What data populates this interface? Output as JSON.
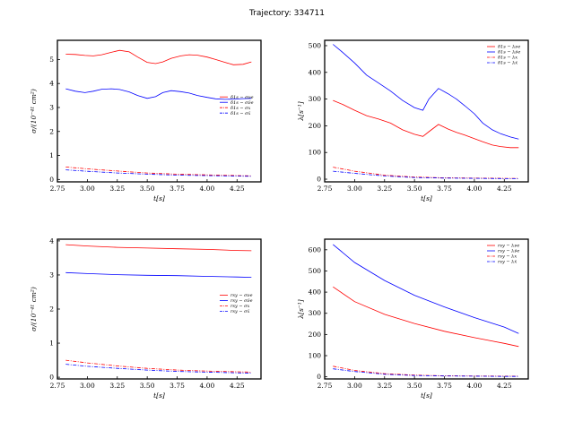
{
  "title": "Trajectory: 334711",
  "chart_data": [
    {
      "type": "line",
      "xlabel": "t[s]",
      "ylabel": "σ/(10⁻⁴¹ cm²)",
      "xlim": [
        2.75,
        4.45
      ],
      "ylim": [
        -0.1,
        5.8
      ],
      "xticks": [
        "2.75",
        "3.00",
        "3.25",
        "3.50",
        "3.75",
        "4.00",
        "4.25"
      ],
      "yticks": [
        "0",
        "1",
        "2",
        "3",
        "4",
        "5"
      ],
      "legend_position": "right",
      "grid": false,
      "series": [
        {
          "name": "δ1s − σνe",
          "color": "#ff0000",
          "style": "solid",
          "x": [
            2.82,
            2.9,
            2.98,
            3.05,
            3.12,
            3.2,
            3.27,
            3.35,
            3.42,
            3.5,
            3.57,
            3.63,
            3.7,
            3.78,
            3.85,
            3.92,
            4.0,
            4.07,
            4.15,
            4.22,
            4.3,
            4.37
          ],
          "y": [
            5.22,
            5.21,
            5.17,
            5.15,
            5.2,
            5.3,
            5.38,
            5.32,
            5.1,
            4.88,
            4.83,
            4.9,
            5.05,
            5.15,
            5.2,
            5.18,
            5.1,
            5.0,
            4.88,
            4.78,
            4.8,
            4.9
          ]
        },
        {
          "name": "δ1s − σν̄e",
          "color": "#0000ff",
          "style": "solid",
          "x": [
            2.82,
            2.9,
            2.98,
            3.05,
            3.12,
            3.2,
            3.27,
            3.35,
            3.42,
            3.5,
            3.57,
            3.63,
            3.7,
            3.78,
            3.85,
            3.92,
            4.0,
            4.07,
            4.15,
            4.22,
            4.3,
            4.37
          ],
          "y": [
            3.78,
            3.68,
            3.62,
            3.68,
            3.76,
            3.78,
            3.75,
            3.65,
            3.5,
            3.38,
            3.45,
            3.62,
            3.7,
            3.66,
            3.6,
            3.5,
            3.42,
            3.36,
            3.34,
            3.35,
            3.37,
            3.38
          ]
        },
        {
          "name": "δ1s − σx",
          "color": "#ff0000",
          "style": "dashdot",
          "x": [
            2.82,
            3.0,
            3.25,
            3.5,
            3.75,
            4.0,
            4.25,
            4.37
          ],
          "y": [
            0.52,
            0.44,
            0.35,
            0.27,
            0.22,
            0.19,
            0.16,
            0.15
          ]
        },
        {
          "name": "δ1s − σx̄",
          "color": "#0000ff",
          "style": "dashdot",
          "x": [
            2.82,
            3.0,
            3.25,
            3.5,
            3.75,
            4.0,
            4.25,
            4.37
          ],
          "y": [
            0.4,
            0.34,
            0.27,
            0.22,
            0.18,
            0.16,
            0.14,
            0.13
          ]
        }
      ]
    },
    {
      "type": "line",
      "xlabel": "t[s]",
      "ylabel": "λ[s⁻¹]",
      "xlim": [
        2.75,
        4.45
      ],
      "ylim": [
        -10,
        520
      ],
      "xticks": [
        "2.75",
        "3.00",
        "3.25",
        "3.50",
        "3.75",
        "4.00",
        "4.25"
      ],
      "yticks": [
        "0",
        "100",
        "200",
        "300",
        "400",
        "500"
      ],
      "legend_position": "top-right",
      "grid": false,
      "series": [
        {
          "name": "δ1s − λνe",
          "color": "#ff0000",
          "style": "solid",
          "x": [
            2.82,
            2.9,
            3.0,
            3.1,
            3.2,
            3.3,
            3.4,
            3.5,
            3.57,
            3.62,
            3.7,
            3.78,
            3.85,
            3.92,
            4.0,
            4.07,
            4.15,
            4.22,
            4.3,
            4.37
          ],
          "y": [
            295,
            280,
            258,
            238,
            225,
            210,
            185,
            168,
            160,
            178,
            205,
            188,
            175,
            165,
            152,
            140,
            128,
            122,
            118,
            118
          ]
        },
        {
          "name": "δ1s − λν̄e",
          "color": "#0000ff",
          "style": "solid",
          "x": [
            2.82,
            2.9,
            3.0,
            3.1,
            3.2,
            3.3,
            3.4,
            3.5,
            3.57,
            3.62,
            3.7,
            3.78,
            3.85,
            3.92,
            4.0,
            4.07,
            4.15,
            4.22,
            4.3,
            4.37
          ],
          "y": [
            505,
            475,
            435,
            390,
            360,
            330,
            295,
            268,
            258,
            300,
            340,
            320,
            300,
            275,
            245,
            210,
            185,
            170,
            158,
            150
          ]
        },
        {
          "name": "δ1s − λx",
          "color": "#ff0000",
          "style": "dashdot",
          "x": [
            2.82,
            3.0,
            3.25,
            3.5,
            3.75,
            4.0,
            4.25,
            4.37
          ],
          "y": [
            45,
            30,
            15,
            8,
            5,
            4,
            3,
            3
          ]
        },
        {
          "name": "δ1s − λx̄",
          "color": "#0000ff",
          "style": "dashdot",
          "x": [
            2.82,
            3.0,
            3.25,
            3.5,
            3.75,
            4.0,
            4.25,
            4.37
          ],
          "y": [
            30,
            22,
            12,
            6,
            4,
            3,
            2,
            2
          ]
        }
      ]
    },
    {
      "type": "line",
      "xlabel": "t[s]",
      "ylabel": "σ/(10⁻⁴¹ cm²)",
      "xlim": [
        2.75,
        4.45
      ],
      "ylim": [
        -0.05,
        4.05
      ],
      "xticks": [
        "2.75",
        "3.00",
        "3.25",
        "3.50",
        "3.75",
        "4.00",
        "4.25"
      ],
      "yticks": [
        "0",
        "1",
        "2",
        "3",
        "4"
      ],
      "legend_position": "right",
      "grid": false,
      "series": [
        {
          "name": "rsy − σνe",
          "color": "#ff0000",
          "style": "solid",
          "x": [
            2.82,
            3.0,
            3.25,
            3.5,
            3.75,
            4.0,
            4.25,
            4.37
          ],
          "y": [
            3.89,
            3.85,
            3.81,
            3.79,
            3.77,
            3.75,
            3.72,
            3.71
          ]
        },
        {
          "name": "rsy − σν̄e",
          "color": "#0000ff",
          "style": "solid",
          "x": [
            2.82,
            3.0,
            3.25,
            3.5,
            3.75,
            4.0,
            4.25,
            4.37
          ],
          "y": [
            3.07,
            3.04,
            3.01,
            2.99,
            2.98,
            2.96,
            2.94,
            2.93
          ]
        },
        {
          "name": "rsy − σx",
          "color": "#ff0000",
          "style": "dashdot",
          "x": [
            2.82,
            3.0,
            3.25,
            3.5,
            3.75,
            4.0,
            4.25,
            4.37
          ],
          "y": [
            0.5,
            0.42,
            0.33,
            0.26,
            0.21,
            0.18,
            0.16,
            0.15
          ]
        },
        {
          "name": "rsy − σx̄",
          "color": "#0000ff",
          "style": "dashdot",
          "x": [
            2.82,
            3.0,
            3.25,
            3.5,
            3.75,
            4.0,
            4.25,
            4.37
          ],
          "y": [
            0.38,
            0.32,
            0.26,
            0.21,
            0.17,
            0.15,
            0.13,
            0.12
          ]
        }
      ]
    },
    {
      "type": "line",
      "xlabel": "t[s]",
      "ylabel": "λ[s⁻¹]",
      "xlim": [
        2.75,
        4.45
      ],
      "ylim": [
        -10,
        650
      ],
      "xticks": [
        "2.75",
        "3.00",
        "3.25",
        "3.50",
        "3.75",
        "4.00",
        "4.25"
      ],
      "yticks": [
        "0",
        "100",
        "200",
        "300",
        "400",
        "500",
        "600"
      ],
      "legend_position": "top-right",
      "grid": false,
      "series": [
        {
          "name": "rsy − λνe",
          "color": "#ff0000",
          "style": "solid",
          "x": [
            2.82,
            3.0,
            3.25,
            3.5,
            3.75,
            4.0,
            4.25,
            4.37
          ],
          "y": [
            425,
            355,
            295,
            252,
            215,
            185,
            158,
            143
          ]
        },
        {
          "name": "rsy − λν̄e",
          "color": "#0000ff",
          "style": "solid",
          "x": [
            2.82,
            3.0,
            3.25,
            3.5,
            3.75,
            4.0,
            4.25,
            4.37
          ],
          "y": [
            625,
            540,
            455,
            385,
            330,
            280,
            235,
            205
          ]
        },
        {
          "name": "rsy − λx",
          "color": "#ff0000",
          "style": "dashdot",
          "x": [
            2.82,
            3.0,
            3.25,
            3.5,
            3.75,
            4.0,
            4.25,
            4.37
          ],
          "y": [
            50,
            30,
            15,
            8,
            5,
            4,
            3,
            3
          ]
        },
        {
          "name": "rsy − λx̄",
          "color": "#0000ff",
          "style": "dashdot",
          "x": [
            2.82,
            3.0,
            3.25,
            3.5,
            3.75,
            4.0,
            4.25,
            4.37
          ],
          "y": [
            38,
            25,
            12,
            6,
            4,
            3,
            2,
            2
          ]
        }
      ]
    }
  ]
}
